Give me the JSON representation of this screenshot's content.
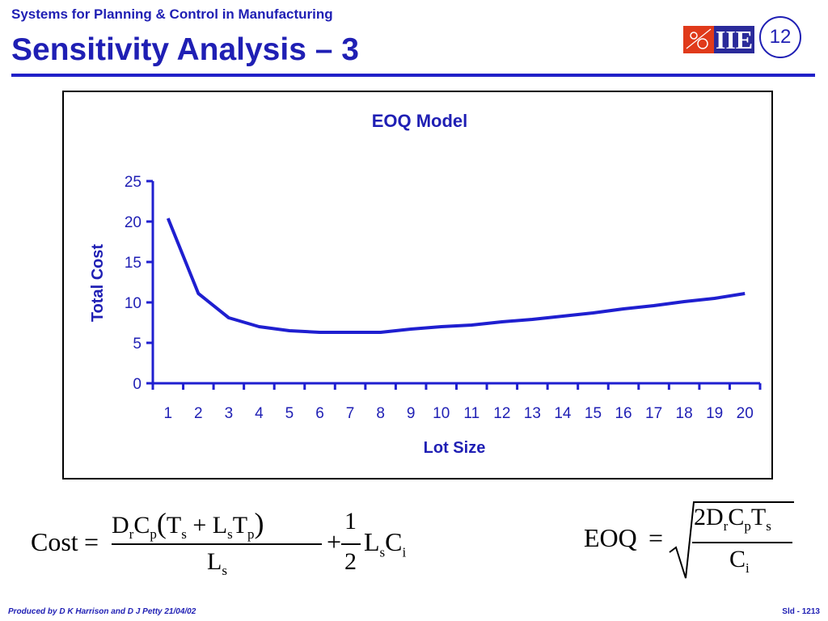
{
  "header": {
    "subtitle": "Systems for Planning & Control in Manufacturing",
    "title": "Sensitivity Analysis – 3",
    "slide_number": "12",
    "logo_text": "IIE"
  },
  "chart_data": {
    "type": "line",
    "title": "EOQ Model",
    "xlabel": "Lot Size",
    "ylabel": "Total Cost",
    "categories": [
      "1",
      "2",
      "3",
      "4",
      "5",
      "6",
      "7",
      "8",
      "9",
      "10",
      "11",
      "12",
      "13",
      "14",
      "15",
      "16",
      "17",
      "18",
      "19",
      "20"
    ],
    "values": [
      20.4,
      11.1,
      8.1,
      7.0,
      6.5,
      6.3,
      6.3,
      6.3,
      6.7,
      7.0,
      7.2,
      7.6,
      7.9,
      8.3,
      8.7,
      9.2,
      9.6,
      10.1,
      10.5,
      11.1
    ],
    "yticks": [
      "0",
      "5",
      "10",
      "15",
      "20",
      "25"
    ],
    "ylim": [
      0,
      25
    ],
    "line_color": "#1f1fd0",
    "text_color": "#1f1fb4",
    "grid": false,
    "legend": false
  },
  "formulas": {
    "cost_lhs": "Cost",
    "cost_eq": "=",
    "cost_num": [
      "D",
      "r",
      "C",
      "p",
      "(",
      "T",
      "s",
      " + ",
      "L",
      "s",
      "T",
      "p",
      ")"
    ],
    "cost_den_main": "L",
    "cost_den_sub": "s",
    "plus": "+",
    "half_num": "1",
    "half_den": "2",
    "tail_main1": "L",
    "tail_sub1": "s",
    "tail_main2": "C",
    "tail_sub2": "i",
    "eoq_lhs": "EOQ",
    "eoq_eq": "=",
    "eoq_num": [
      "2D",
      "r",
      "C",
      "p",
      "T",
      "s"
    ],
    "eoq_den_main": "C",
    "eoq_den_sub": "i"
  },
  "footer": {
    "credit": "Produced by D K Harrison and D J Petty 21/04/02",
    "slide_id": "Sld - 1213"
  }
}
